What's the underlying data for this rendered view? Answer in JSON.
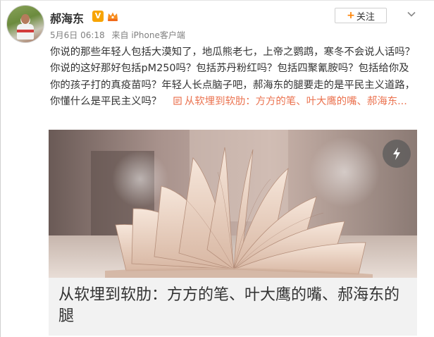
{
  "post": {
    "author": "郝海东",
    "verified_badge": "V",
    "date": "5月6日 06:18",
    "source": "来自 iPhone客户端",
    "follow_label": "关注",
    "body": "你说的那些年轻人包括大漠知了，地瓜熊老七，上帝之鹦鹉，寒冬不会说人话吗？你说的这好那好包括pM250吗？包括苏丹粉红吗？包括四聚氰胺吗？包括给你及你的孩子打的真疫苗吗？年轻人长点脑子吧，郝海东的腿要走的是平民主义道路，你懂什么是平民主义吗？",
    "link_text": "从软埋到软肋：方方的笔、叶大鹰的嘴、郝海东...",
    "link_icon": "article-link-icon"
  },
  "card": {
    "title": "从软埋到软肋：方方的笔、叶大鹰的嘴、郝海东的腿",
    "image_desc_icon": "open-book-image",
    "flash_icon": "lightning-icon"
  },
  "colors": {
    "accent_link": "#eb7350",
    "text": "#333333",
    "meta": "#808080",
    "badge": "#f7a400",
    "follow_plus": "#ff8200"
  }
}
